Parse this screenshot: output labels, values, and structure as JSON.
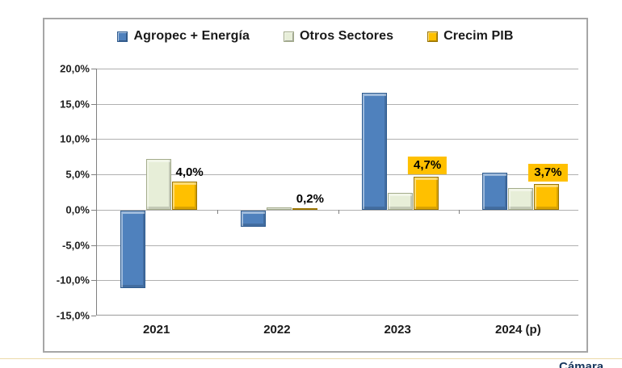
{
  "chart_data": {
    "type": "bar",
    "title": "",
    "categories": [
      "2021",
      "2022",
      "2023",
      "2024 (p)"
    ],
    "series": [
      {
        "name": "Agropec + Energía",
        "color": "#4F81BD",
        "border_color": "#2e5b8f",
        "values": [
          -11.0,
          -2.3,
          16.6,
          5.3
        ]
      },
      {
        "name": "Otros Sectores",
        "color": "#E7EED8",
        "border_color": "#a3ab8a",
        "values": [
          7.2,
          0.3,
          2.4,
          3.1
        ]
      },
      {
        "name": "Crecim PIB",
        "color": "#FFC000",
        "border_color": "#9a7400",
        "values": [
          4.0,
          0.2,
          4.7,
          3.7
        ],
        "data_labels": [
          "4,0%",
          "0,2%",
          "4,7%",
          "3,7%"
        ],
        "data_label_styles": [
          "plain",
          "plain",
          "boxed",
          "boxed"
        ]
      }
    ],
    "ylim": [
      -15,
      20
    ],
    "ytick_step": 5,
    "ytick_labels": [
      "20,0%",
      "15,0%",
      "10,0%",
      "5,0%",
      "0,0%",
      "-5,0%",
      "-10,0%",
      "-15,0%"
    ],
    "grid": true,
    "legend_position": "top",
    "label_box_color": "#FFC000"
  },
  "footer": {
    "rule_color": "#d7a44a",
    "partial_text": "Cámara"
  }
}
